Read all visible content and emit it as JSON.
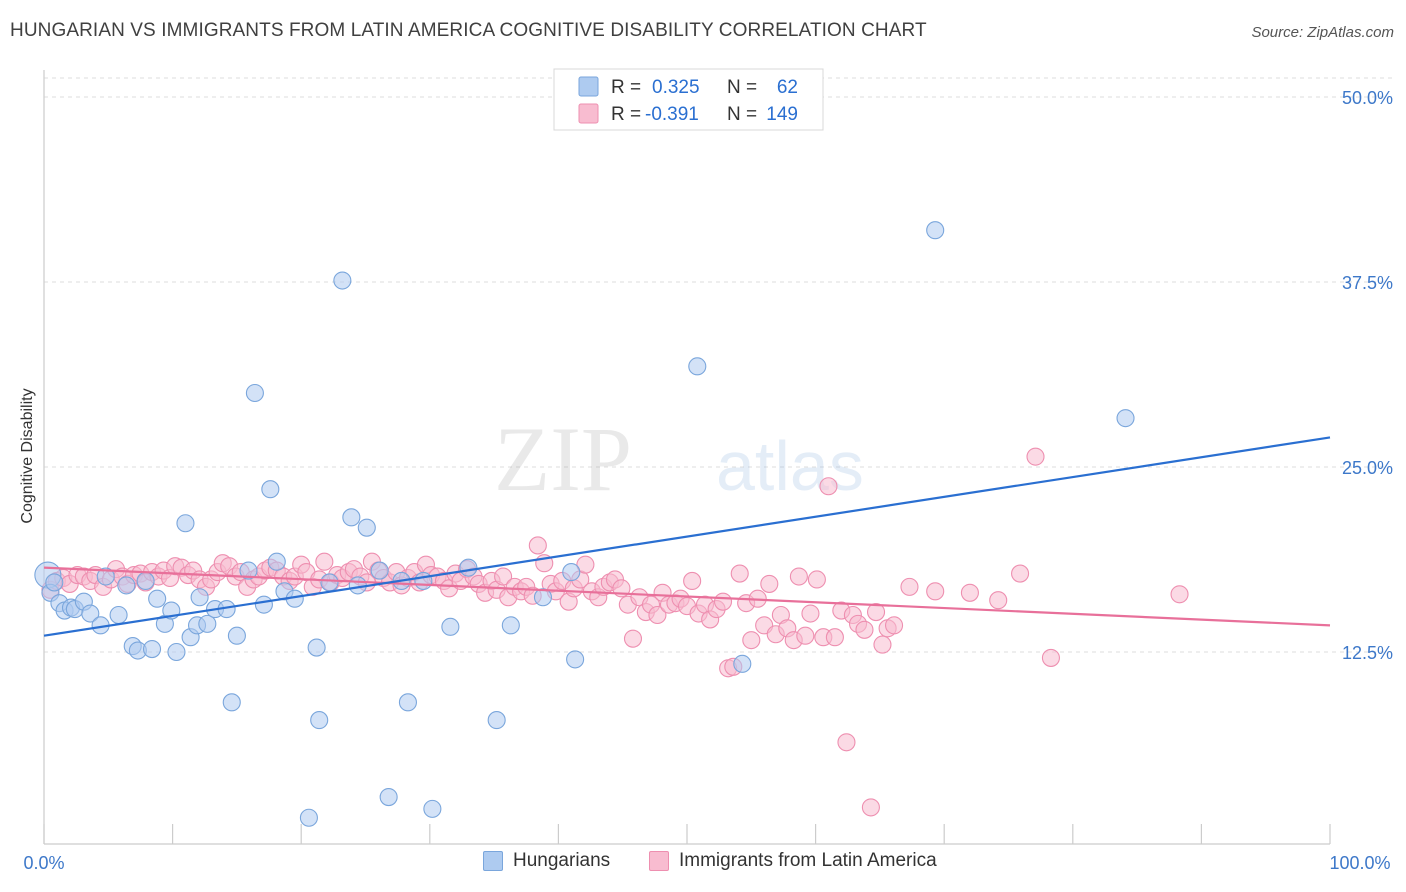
{
  "header": {
    "title": "HUNGARIAN VS IMMIGRANTS FROM LATIN AMERICA COGNITIVE DISABILITY CORRELATION CHART",
    "source": "Source: ZipAtlas.com"
  },
  "watermark": {
    "zip": "ZIP",
    "atlas": "atlas"
  },
  "colors": {
    "hungarian_fill": "#aecbf0",
    "hungarian_stroke": "#7aa6dc",
    "hungarian_line": "#2a6fd1",
    "latin_fill": "#f8bcd0",
    "latin_stroke": "#ee8fb0",
    "latin_line": "#e8709a",
    "tick_label": "#3d78c9",
    "grid": "#dddddd"
  },
  "stats_legend": [
    {
      "r_label": "R =",
      "r_value": "0.325",
      "n_label": "N =",
      "n_value": "62"
    },
    {
      "r_label": "R =",
      "r_value": "-0.391",
      "n_label": "N =",
      "n_value": "149"
    }
  ],
  "bottom_legend": [
    "Hungarians",
    "Immigrants from Latin America"
  ],
  "chart_data": {
    "type": "scatter",
    "title": "HUNGARIAN VS IMMIGRANTS FROM LATIN AMERICA COGNITIVE DISABILITY CORRELATION CHART",
    "xlabel": "",
    "ylabel": "Cognitive Disability",
    "xlim": [
      0,
      100
    ],
    "ylim": [
      0,
      52
    ],
    "x_tick_labels": [
      "0.0%",
      "100.0%"
    ],
    "y_ticks": [
      12.5,
      25.0,
      37.5,
      50.0
    ],
    "y_tick_labels": [
      "12.5%",
      "25.0%",
      "37.5%",
      "50.0%"
    ],
    "grid": true,
    "legend_position": "top-center",
    "series": [
      {
        "name": "Hungarians",
        "R": 0.325,
        "N": 62,
        "trend": {
          "x": [
            0,
            100
          ],
          "y": [
            13.6,
            27.0
          ]
        },
        "points": [
          [
            0.3,
            17.7
          ],
          [
            0.5,
            16.5
          ],
          [
            0.8,
            17.2
          ],
          [
            1.2,
            15.8
          ],
          [
            1.6,
            15.3
          ],
          [
            2.1,
            15.5
          ],
          [
            2.4,
            15.4
          ],
          [
            3.1,
            15.9
          ],
          [
            3.6,
            15.1
          ],
          [
            4.4,
            14.3
          ],
          [
            4.8,
            17.6
          ],
          [
            5.8,
            15.0
          ],
          [
            6.4,
            17.0
          ],
          [
            6.9,
            12.9
          ],
          [
            7.3,
            12.6
          ],
          [
            7.9,
            17.3
          ],
          [
            8.4,
            12.7
          ],
          [
            8.8,
            16.1
          ],
          [
            9.4,
            14.4
          ],
          [
            9.9,
            15.3
          ],
          [
            10.3,
            12.5
          ],
          [
            11.0,
            21.2
          ],
          [
            11.4,
            13.5
          ],
          [
            11.9,
            14.3
          ],
          [
            12.1,
            16.2
          ],
          [
            12.7,
            14.4
          ],
          [
            13.3,
            15.4
          ],
          [
            14.2,
            15.4
          ],
          [
            14.6,
            9.1
          ],
          [
            15.0,
            13.6
          ],
          [
            15.9,
            18.0
          ],
          [
            16.4,
            30.0
          ],
          [
            17.1,
            15.7
          ],
          [
            17.6,
            23.5
          ],
          [
            18.1,
            18.6
          ],
          [
            18.7,
            16.6
          ],
          [
            19.5,
            16.1
          ],
          [
            20.6,
            1.3
          ],
          [
            21.2,
            12.8
          ],
          [
            21.4,
            7.9
          ],
          [
            22.2,
            17.2
          ],
          [
            23.2,
            37.6
          ],
          [
            23.9,
            21.6
          ],
          [
            24.4,
            17.0
          ],
          [
            25.1,
            20.9
          ],
          [
            26.1,
            18.0
          ],
          [
            26.8,
            2.7
          ],
          [
            27.8,
            17.3
          ],
          [
            28.3,
            9.1
          ],
          [
            29.5,
            17.3
          ],
          [
            30.2,
            1.9
          ],
          [
            31.6,
            14.2
          ],
          [
            33.0,
            18.2
          ],
          [
            35.2,
            7.9
          ],
          [
            36.3,
            14.3
          ],
          [
            38.8,
            16.2
          ],
          [
            41.0,
            17.9
          ],
          [
            41.3,
            12.0
          ],
          [
            50.8,
            31.8
          ],
          [
            54.3,
            11.7
          ],
          [
            69.3,
            41.0
          ],
          [
            84.1,
            28.3
          ]
        ]
      },
      {
        "name": "Immigrants from Latin America",
        "R": -0.391,
        "N": 149,
        "trend": {
          "x": [
            0,
            100
          ],
          "y": [
            18.2,
            14.3
          ]
        },
        "points": [
          [
            0.5,
            16.7
          ],
          [
            1.0,
            17.3
          ],
          [
            1.5,
            17.5
          ],
          [
            2.0,
            17.1
          ],
          [
            2.6,
            17.7
          ],
          [
            3.1,
            17.6
          ],
          [
            3.6,
            17.3
          ],
          [
            4.0,
            17.7
          ],
          [
            4.6,
            16.9
          ],
          [
            5.2,
            17.4
          ],
          [
            5.6,
            18.1
          ],
          [
            6.1,
            17.6
          ],
          [
            6.5,
            17.1
          ],
          [
            7.0,
            17.7
          ],
          [
            7.5,
            17.8
          ],
          [
            7.9,
            17.2
          ],
          [
            8.4,
            17.9
          ],
          [
            8.9,
            17.6
          ],
          [
            9.3,
            18.0
          ],
          [
            9.8,
            17.5
          ],
          [
            10.2,
            18.3
          ],
          [
            10.7,
            18.2
          ],
          [
            11.2,
            17.7
          ],
          [
            11.6,
            18.0
          ],
          [
            12.1,
            17.4
          ],
          [
            12.6,
            16.9
          ],
          [
            13.0,
            17.4
          ],
          [
            13.5,
            17.9
          ],
          [
            13.9,
            18.5
          ],
          [
            14.4,
            18.3
          ],
          [
            14.9,
            17.6
          ],
          [
            15.3,
            17.9
          ],
          [
            15.8,
            16.9
          ],
          [
            16.3,
            17.4
          ],
          [
            16.7,
            17.6
          ],
          [
            17.2,
            18.0
          ],
          [
            17.6,
            18.2
          ],
          [
            18.1,
            18.0
          ],
          [
            18.6,
            17.6
          ],
          [
            19.1,
            17.3
          ],
          [
            19.5,
            17.6
          ],
          [
            20.0,
            18.4
          ],
          [
            20.4,
            17.9
          ],
          [
            20.9,
            16.9
          ],
          [
            21.4,
            17.4
          ],
          [
            21.8,
            18.6
          ],
          [
            22.3,
            17.2
          ],
          [
            22.8,
            17.7
          ],
          [
            23.2,
            17.5
          ],
          [
            23.7,
            17.9
          ],
          [
            24.1,
            18.1
          ],
          [
            24.6,
            17.6
          ],
          [
            25.1,
            17.2
          ],
          [
            25.5,
            18.6
          ],
          [
            26.0,
            18.0
          ],
          [
            26.4,
            17.5
          ],
          [
            26.9,
            17.2
          ],
          [
            27.4,
            17.9
          ],
          [
            27.8,
            17.0
          ],
          [
            28.3,
            17.5
          ],
          [
            28.8,
            17.9
          ],
          [
            29.2,
            17.2
          ],
          [
            29.7,
            18.4
          ],
          [
            30.1,
            17.7
          ],
          [
            30.6,
            17.6
          ],
          [
            31.1,
            17.3
          ],
          [
            31.5,
            16.8
          ],
          [
            32.0,
            17.8
          ],
          [
            32.4,
            17.3
          ],
          [
            32.9,
            18.1
          ],
          [
            33.4,
            17.6
          ],
          [
            33.8,
            17.1
          ],
          [
            34.3,
            16.5
          ],
          [
            34.8,
            17.3
          ],
          [
            35.2,
            16.7
          ],
          [
            35.7,
            17.6
          ],
          [
            36.1,
            16.2
          ],
          [
            36.6,
            16.9
          ],
          [
            37.1,
            16.6
          ],
          [
            37.5,
            16.9
          ],
          [
            38.0,
            16.3
          ],
          [
            38.4,
            19.7
          ],
          [
            38.9,
            18.5
          ],
          [
            39.4,
            17.1
          ],
          [
            39.8,
            16.6
          ],
          [
            40.3,
            17.3
          ],
          [
            40.8,
            15.9
          ],
          [
            41.2,
            16.8
          ],
          [
            41.7,
            17.4
          ],
          [
            42.1,
            18.4
          ],
          [
            42.6,
            16.6
          ],
          [
            43.1,
            16.2
          ],
          [
            43.5,
            16.9
          ],
          [
            44.0,
            17.2
          ],
          [
            44.4,
            17.4
          ],
          [
            44.9,
            16.8
          ],
          [
            45.4,
            15.7
          ],
          [
            45.8,
            13.4
          ],
          [
            46.3,
            16.2
          ],
          [
            46.8,
            15.2
          ],
          [
            47.2,
            15.7
          ],
          [
            47.7,
            15.0
          ],
          [
            48.1,
            16.5
          ],
          [
            48.6,
            15.7
          ],
          [
            49.1,
            15.8
          ],
          [
            49.5,
            16.1
          ],
          [
            50.0,
            15.6
          ],
          [
            50.4,
            17.3
          ],
          [
            50.9,
            15.1
          ],
          [
            51.4,
            15.7
          ],
          [
            51.8,
            14.7
          ],
          [
            52.3,
            15.4
          ],
          [
            52.8,
            15.9
          ],
          [
            53.2,
            11.4
          ],
          [
            53.6,
            11.5
          ],
          [
            54.1,
            17.8
          ],
          [
            54.6,
            15.8
          ],
          [
            55.0,
            13.3
          ],
          [
            55.5,
            16.1
          ],
          [
            56.0,
            14.3
          ],
          [
            56.4,
            17.1
          ],
          [
            56.9,
            13.7
          ],
          [
            57.3,
            15.0
          ],
          [
            57.8,
            14.1
          ],
          [
            58.3,
            13.3
          ],
          [
            58.7,
            17.6
          ],
          [
            59.2,
            13.6
          ],
          [
            59.6,
            15.1
          ],
          [
            60.1,
            17.4
          ],
          [
            60.6,
            13.5
          ],
          [
            61.0,
            23.7
          ],
          [
            61.5,
            13.5
          ],
          [
            62.0,
            15.3
          ],
          [
            62.4,
            6.4
          ],
          [
            62.9,
            15.0
          ],
          [
            63.3,
            14.4
          ],
          [
            63.8,
            14.0
          ],
          [
            64.3,
            2.0
          ],
          [
            64.7,
            15.2
          ],
          [
            65.2,
            13.0
          ],
          [
            65.6,
            14.1
          ],
          [
            66.1,
            14.3
          ],
          [
            67.3,
            16.9
          ],
          [
            69.3,
            16.6
          ],
          [
            72.0,
            16.5
          ],
          [
            74.2,
            16.0
          ],
          [
            75.9,
            17.8
          ],
          [
            77.1,
            25.7
          ],
          [
            78.3,
            12.1
          ],
          [
            88.3,
            16.4
          ]
        ]
      }
    ]
  }
}
